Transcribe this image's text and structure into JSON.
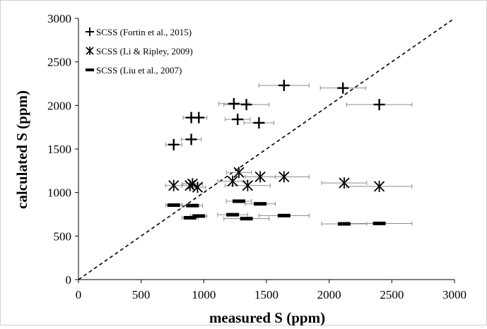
{
  "chart_data": {
    "type": "scatter",
    "xlabel": "measured S (ppm)",
    "ylabel": "calculated S (ppm)",
    "xlim": [
      0,
      3000
    ],
    "ylim": [
      0,
      3000
    ],
    "xticks": [
      "0",
      "500",
      "1000",
      "1500",
      "2000",
      "2500",
      "3000"
    ],
    "yticks": [
      "0",
      "500",
      "1000",
      "1500",
      "2000",
      "2500",
      "3000"
    ],
    "grid": false,
    "legend_position": "top-left",
    "reference_line": {
      "style": "dashed",
      "x": [
        0,
        3000
      ],
      "y": [
        0,
        3000
      ]
    },
    "series": [
      {
        "name": "SCSS (Fortin et al., 2015)",
        "marker": "plus",
        "points": [
          {
            "x": 760,
            "y": 1550,
            "xerr": 65
          },
          {
            "x": 900,
            "y": 1610,
            "xerr": 80
          },
          {
            "x": 900,
            "y": 1860,
            "xerr": 65
          },
          {
            "x": 960,
            "y": 1860,
            "xerr": 65
          },
          {
            "x": 1240,
            "y": 2020,
            "xerr": 120
          },
          {
            "x": 1270,
            "y": 1840,
            "xerr": 100
          },
          {
            "x": 1340,
            "y": 2010,
            "xerr": 180
          },
          {
            "x": 1440,
            "y": 1800,
            "xerr": 120
          },
          {
            "x": 1640,
            "y": 2230,
            "xerr": 200
          },
          {
            "x": 2110,
            "y": 2200,
            "xerr": 180
          },
          {
            "x": 2400,
            "y": 2010,
            "xerr": 260
          }
        ]
      },
      {
        "name": "SCSS (Li & Ripley, 2009)",
        "marker": "asterisk",
        "points": [
          {
            "x": 760,
            "y": 1080,
            "xerr": 65
          },
          {
            "x": 890,
            "y": 1080,
            "xerr": 65
          },
          {
            "x": 910,
            "y": 1100,
            "xerr": 80
          },
          {
            "x": 950,
            "y": 1060,
            "xerr": 65
          },
          {
            "x": 1230,
            "y": 1130,
            "xerr": 120
          },
          {
            "x": 1280,
            "y": 1230,
            "xerr": 100
          },
          {
            "x": 1350,
            "y": 1080,
            "xerr": 180
          },
          {
            "x": 1450,
            "y": 1180,
            "xerr": 120
          },
          {
            "x": 1640,
            "y": 1180,
            "xerr": 200
          },
          {
            "x": 2120,
            "y": 1110,
            "xerr": 180
          },
          {
            "x": 2400,
            "y": 1070,
            "xerr": 260
          }
        ]
      },
      {
        "name": "SCSS (Liu et al., 2007)",
        "marker": "dash",
        "points": [
          {
            "x": 760,
            "y": 855,
            "xerr": 65
          },
          {
            "x": 890,
            "y": 710,
            "xerr": 65
          },
          {
            "x": 910,
            "y": 850,
            "xerr": 80
          },
          {
            "x": 960,
            "y": 730,
            "xerr": 65
          },
          {
            "x": 1230,
            "y": 745,
            "xerr": 120
          },
          {
            "x": 1280,
            "y": 900,
            "xerr": 100
          },
          {
            "x": 1340,
            "y": 700,
            "xerr": 180
          },
          {
            "x": 1450,
            "y": 870,
            "xerr": 120
          },
          {
            "x": 1640,
            "y": 735,
            "xerr": 200
          },
          {
            "x": 2120,
            "y": 640,
            "xerr": 180
          },
          {
            "x": 2400,
            "y": 645,
            "xerr": 260
          }
        ]
      }
    ]
  }
}
